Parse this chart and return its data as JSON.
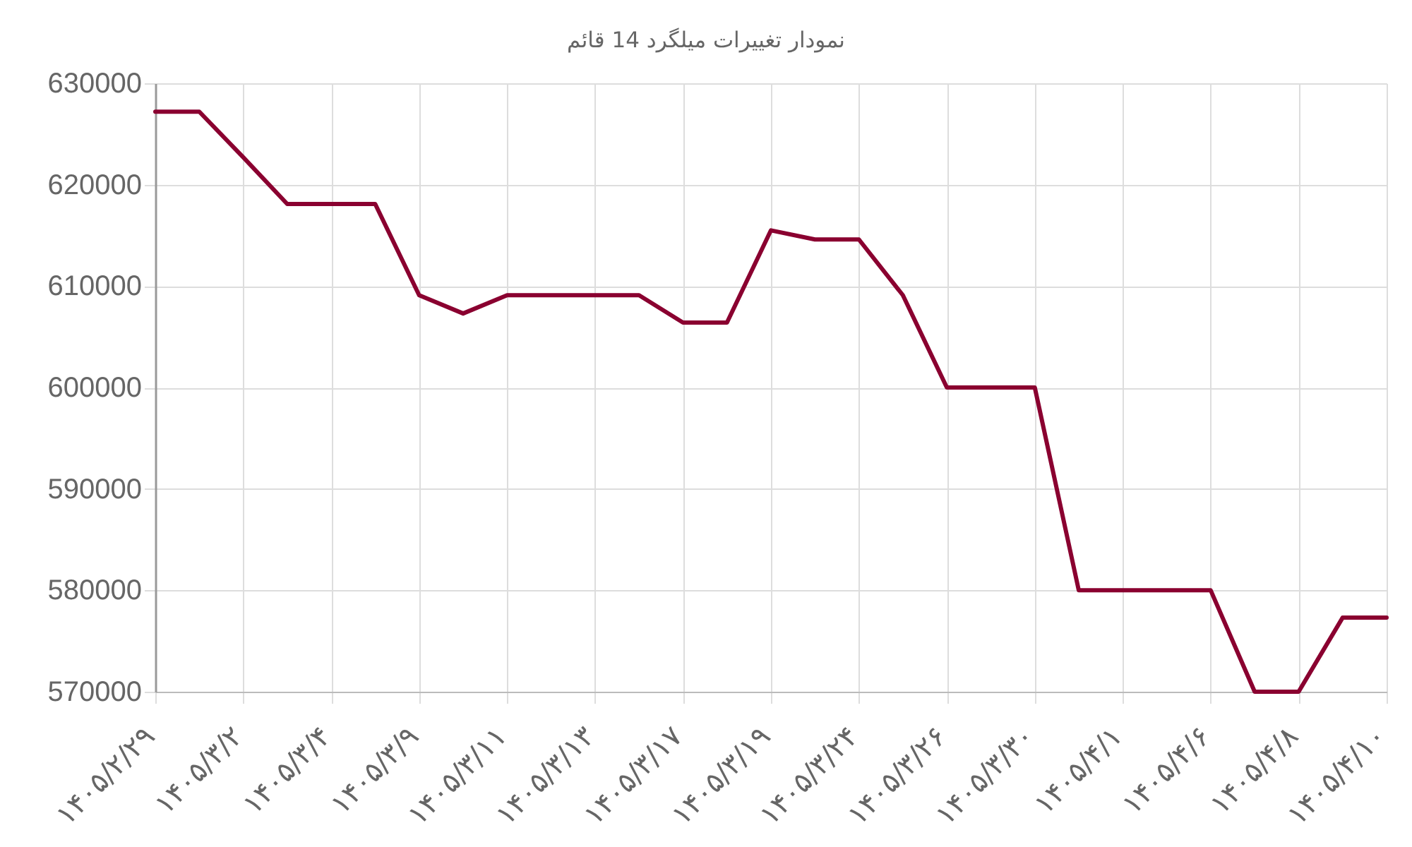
{
  "chart_data": {
    "type": "line",
    "title": "نمودار تغییرات میلگرد 14 قائم",
    "categories": [
      "۱۴۰۵/۲/۲۹",
      null,
      "۱۴۰۵/۳/۲",
      null,
      "۱۴۰۵/۳/۴",
      null,
      "۱۴۰۵/۳/۹",
      null,
      "۱۴۰۵/۳/۱۱",
      null,
      "۱۴۰۵/۳/۱۳",
      null,
      "۱۴۰۵/۳/۱۷",
      null,
      "۱۴۰۵/۳/۱۹",
      null,
      "۱۴۰۵/۳/۲۴",
      null,
      "۱۴۰۵/۳/۲۶",
      null,
      "۱۴۰۵/۳/۳۰",
      null,
      "۱۴۰۵/۴/۱",
      null,
      "۱۴۰۵/۴/۶",
      null,
      "۱۴۰۵/۴/۸",
      null,
      "۱۴۰۵/۴/۱۰"
    ],
    "series": [
      {
        "color": "#8a0030",
        "values": [
          627200,
          627200,
          622700,
          618100,
          618100,
          618100,
          609100,
          607300,
          609100,
          609100,
          609100,
          609100,
          606400,
          606400,
          615500,
          614600,
          614600,
          609100,
          600000,
          600000,
          600000,
          580000,
          580000,
          580000,
          580000,
          570000,
          570000,
          577300,
          577300
        ]
      }
    ],
    "ylim": [
      570000,
      630000
    ],
    "yticks": [
      570000,
      580000,
      590000,
      600000,
      610000,
      620000,
      630000
    ],
    "grid": true,
    "marker": "none",
    "line_style": "solid"
  }
}
